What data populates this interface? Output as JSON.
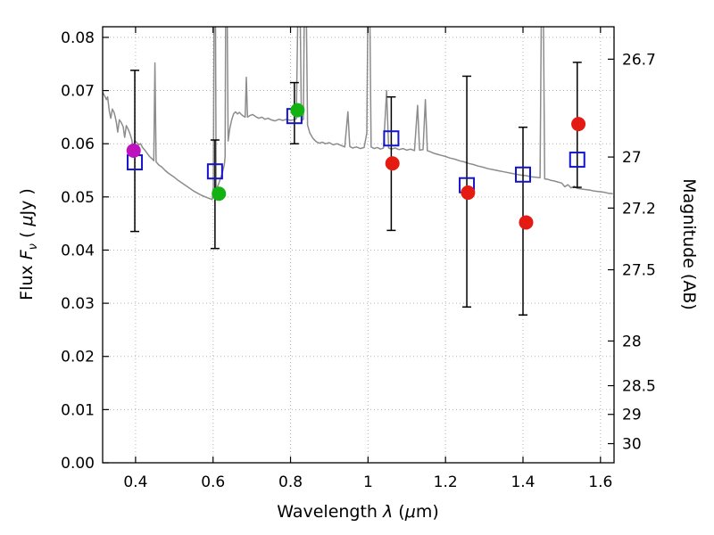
{
  "labels": {
    "x_word": "Wavelength  ",
    "x_lambda": "λ",
    "x_paren1": " (",
    "x_mu": "μ",
    "x_paren2": "m)",
    "y_flux": "Flux  ",
    "y_F": "F",
    "y_nu": "ν",
    "y_paren1": "  ( ",
    "y_mu": "μ",
    "y_units": "Jy )",
    "y2": "Magnitude (AB)"
  },
  "chart_data": {
    "type": "scatter",
    "xlabel": "Wavelength λ (μm)",
    "ylabel": "Flux Fν ( μJy )",
    "y2label": "Magnitude (AB)",
    "xlim": [
      0.315,
      1.635
    ],
    "ylim": [
      0,
      0.082
    ],
    "grid": true,
    "x_ticks": {
      "values": [
        0.4,
        0.6,
        0.8,
        1.0,
        1.2,
        1.4,
        1.6
      ],
      "labels": [
        "0.4",
        "0.6",
        "0.8",
        "1",
        "1.2",
        "1.4",
        "1.6"
      ]
    },
    "y_ticks": {
      "values": [
        0,
        0.01,
        0.02,
        0.03,
        0.04,
        0.05,
        0.06,
        0.07,
        0.08
      ],
      "labels": [
        "0.00",
        "0.01",
        "0.02",
        "0.03",
        "0.04",
        "0.05",
        "0.06",
        "0.07",
        "0.08"
      ]
    },
    "y2_ticks": {
      "labels": [
        "26.7",
        "27",
        "27.2",
        "27.5",
        "28",
        "28.5",
        "29",
        "30"
      ],
      "flux_values": [
        0.0759,
        0.0575,
        0.0479,
        0.0363,
        0.0229,
        0.0145,
        0.0091,
        0.0036
      ]
    },
    "colors": {
      "spectrum": "#8c8c8c",
      "square": "#1414cc",
      "errorbar": "#000000"
    },
    "squares": [
      {
        "x": 0.398,
        "y": 0.0565,
        "ylo": 0.0435,
        "yhi": 0.0738
      },
      {
        "x": 0.605,
        "y": 0.0548,
        "ylo": 0.0403,
        "yhi": 0.0607
      },
      {
        "x": 0.81,
        "y": 0.0652,
        "ylo": 0.06,
        "yhi": 0.0715
      },
      {
        "x": 1.06,
        "y": 0.061,
        "ylo": 0.0437,
        "yhi": 0.0688
      },
      {
        "x": 1.255,
        "y": 0.0522,
        "ylo": 0.0293,
        "yhi": 0.0727
      },
      {
        "x": 1.4,
        "y": 0.0542,
        "ylo": 0.0278,
        "yhi": 0.0631
      },
      {
        "x": 1.54,
        "y": 0.057,
        "ylo": 0.0518,
        "yhi": 0.0753
      }
    ],
    "circles": [
      {
        "x": 0.395,
        "y": 0.0587,
        "color": "#bf12bf"
      },
      {
        "x": 0.615,
        "y": 0.0506,
        "color": "#12b212"
      },
      {
        "x": 0.818,
        "y": 0.0663,
        "color": "#12b212"
      },
      {
        "x": 1.063,
        "y": 0.0563,
        "color": "#e31b12"
      },
      {
        "x": 1.258,
        "y": 0.0508,
        "color": "#e31b12"
      },
      {
        "x": 1.408,
        "y": 0.0452,
        "color": "#e31b12"
      },
      {
        "x": 1.543,
        "y": 0.0637,
        "color": "#e31b12"
      }
    ],
    "spectrum": [
      [
        0.315,
        0.0697
      ],
      [
        0.32,
        0.069
      ],
      [
        0.325,
        0.0683
      ],
      [
        0.328,
        0.0688
      ],
      [
        0.332,
        0.0662
      ],
      [
        0.336,
        0.0648
      ],
      [
        0.34,
        0.0665
      ],
      [
        0.345,
        0.0658
      ],
      [
        0.35,
        0.0642
      ],
      [
        0.354,
        0.0622
      ],
      [
        0.358,
        0.0645
      ],
      [
        0.363,
        0.064
      ],
      [
        0.368,
        0.0632
      ],
      [
        0.372,
        0.0612
      ],
      [
        0.376,
        0.0634
      ],
      [
        0.381,
        0.0627
      ],
      [
        0.386,
        0.0618
      ],
      [
        0.39,
        0.0608
      ],
      [
        0.394,
        0.059
      ],
      [
        0.398,
        0.0606
      ],
      [
        0.403,
        0.0602
      ],
      [
        0.408,
        0.0598
      ],
      [
        0.413,
        0.06
      ],
      [
        0.418,
        0.0593
      ],
      [
        0.424,
        0.0588
      ],
      [
        0.43,
        0.0582
      ],
      [
        0.436,
        0.0576
      ],
      [
        0.442,
        0.0572
      ],
      [
        0.447,
        0.0568
      ],
      [
        0.45,
        0.0752
      ],
      [
        0.453,
        0.0566
      ],
      [
        0.46,
        0.056
      ],
      [
        0.468,
        0.0556
      ],
      [
        0.476,
        0.055
      ],
      [
        0.484,
        0.0545
      ],
      [
        0.492,
        0.0541
      ],
      [
        0.5,
        0.0537
      ],
      [
        0.51,
        0.0531
      ],
      [
        0.52,
        0.0526
      ],
      [
        0.53,
        0.0521
      ],
      [
        0.54,
        0.0516
      ],
      [
        0.55,
        0.0511
      ],
      [
        0.56,
        0.0507
      ],
      [
        0.57,
        0.0503
      ],
      [
        0.58,
        0.05
      ],
      [
        0.59,
        0.0497
      ],
      [
        0.598,
        0.0495
      ],
      [
        0.601,
        0.052
      ],
      [
        0.603,
        0.09
      ],
      [
        0.606,
        0.09
      ],
      [
        0.608,
        0.0515
      ],
      [
        0.613,
        0.0522
      ],
      [
        0.618,
        0.0532
      ],
      [
        0.624,
        0.0545
      ],
      [
        0.629,
        0.056
      ],
      [
        0.631,
        0.0575
      ],
      [
        0.633,
        0.09
      ],
      [
        0.636,
        0.09
      ],
      [
        0.639,
        0.0605
      ],
      [
        0.643,
        0.0628
      ],
      [
        0.648,
        0.0645
      ],
      [
        0.653,
        0.0656
      ],
      [
        0.658,
        0.066
      ],
      [
        0.663,
        0.0656
      ],
      [
        0.668,
        0.0659
      ],
      [
        0.673,
        0.0655
      ],
      [
        0.678,
        0.0652
      ],
      [
        0.683,
        0.065
      ],
      [
        0.686,
        0.0725
      ],
      [
        0.689,
        0.065
      ],
      [
        0.695,
        0.0653
      ],
      [
        0.702,
        0.0655
      ],
      [
        0.71,
        0.0651
      ],
      [
        0.718,
        0.0648
      ],
      [
        0.726,
        0.065
      ],
      [
        0.734,
        0.0646
      ],
      [
        0.742,
        0.0648
      ],
      [
        0.75,
        0.0645
      ],
      [
        0.76,
        0.0643
      ],
      [
        0.77,
        0.0646
      ],
      [
        0.78,
        0.0644
      ],
      [
        0.79,
        0.0646
      ],
      [
        0.8,
        0.0644
      ],
      [
        0.808,
        0.0645
      ],
      [
        0.815,
        0.0647
      ],
      [
        0.82,
        0.09
      ],
      [
        0.824,
        0.09
      ],
      [
        0.828,
        0.0643
      ],
      [
        0.833,
        0.0646
      ],
      [
        0.836,
        0.09
      ],
      [
        0.84,
        0.09
      ],
      [
        0.844,
        0.0635
      ],
      [
        0.85,
        0.062
      ],
      [
        0.858,
        0.061
      ],
      [
        0.866,
        0.0604
      ],
      [
        0.874,
        0.0601
      ],
      [
        0.882,
        0.0603
      ],
      [
        0.89,
        0.06
      ],
      [
        0.9,
        0.0602
      ],
      [
        0.91,
        0.0598
      ],
      [
        0.92,
        0.06
      ],
      [
        0.93,
        0.0597
      ],
      [
        0.94,
        0.0594
      ],
      [
        0.948,
        0.066
      ],
      [
        0.953,
        0.0595
      ],
      [
        0.96,
        0.0592
      ],
      [
        0.97,
        0.0594
      ],
      [
        0.98,
        0.0591
      ],
      [
        0.99,
        0.0593
      ],
      [
        0.997,
        0.062
      ],
      [
        1.0,
        0.09
      ],
      [
        1.004,
        0.09
      ],
      [
        1.008,
        0.0594
      ],
      [
        1.016,
        0.0591
      ],
      [
        1.024,
        0.0593
      ],
      [
        1.032,
        0.059
      ],
      [
        1.04,
        0.0592
      ],
      [
        1.048,
        0.07
      ],
      [
        1.053,
        0.0592
      ],
      [
        1.06,
        0.059
      ],
      [
        1.07,
        0.0592
      ],
      [
        1.08,
        0.0589
      ],
      [
        1.09,
        0.0591
      ],
      [
        1.1,
        0.0588
      ],
      [
        1.11,
        0.059
      ],
      [
        1.12,
        0.0587
      ],
      [
        1.128,
        0.0672
      ],
      [
        1.133,
        0.0588
      ],
      [
        1.142,
        0.0589
      ],
      [
        1.148,
        0.0683
      ],
      [
        1.153,
        0.0587
      ],
      [
        1.16,
        0.0585
      ],
      [
        1.17,
        0.0582
      ],
      [
        1.18,
        0.058
      ],
      [
        1.19,
        0.0578
      ],
      [
        1.2,
        0.0576
      ],
      [
        1.212,
        0.0573
      ],
      [
        1.224,
        0.0571
      ],
      [
        1.236,
        0.0568
      ],
      [
        1.248,
        0.0566
      ],
      [
        1.26,
        0.0563
      ],
      [
        1.272,
        0.0561
      ],
      [
        1.284,
        0.0558
      ],
      [
        1.296,
        0.0556
      ],
      [
        1.31,
        0.0553
      ],
      [
        1.324,
        0.0551
      ],
      [
        1.338,
        0.0549
      ],
      [
        1.352,
        0.0547
      ],
      [
        1.366,
        0.0545
      ],
      [
        1.38,
        0.0543
      ],
      [
        1.394,
        0.0541
      ],
      [
        1.408,
        0.054
      ],
      [
        1.42,
        0.0538
      ],
      [
        1.432,
        0.0537
      ],
      [
        1.444,
        0.0536
      ],
      [
        1.448,
        0.09
      ],
      [
        1.452,
        0.09
      ],
      [
        1.456,
        0.0534
      ],
      [
        1.464,
        0.0533
      ],
      [
        1.472,
        0.0531
      ],
      [
        1.48,
        0.053
      ],
      [
        1.49,
        0.0528
      ],
      [
        1.5,
        0.0526
      ],
      [
        1.508,
        0.0519
      ],
      [
        1.516,
        0.0523
      ],
      [
        1.524,
        0.0517
      ],
      [
        1.532,
        0.052
      ],
      [
        1.54,
        0.0516
      ],
      [
        1.55,
        0.0515
      ],
      [
        1.56,
        0.0514
      ],
      [
        1.572,
        0.0513
      ],
      [
        1.584,
        0.0511
      ],
      [
        1.596,
        0.051
      ],
      [
        1.608,
        0.0509
      ],
      [
        1.62,
        0.0507
      ],
      [
        1.632,
        0.0506
      ]
    ]
  }
}
